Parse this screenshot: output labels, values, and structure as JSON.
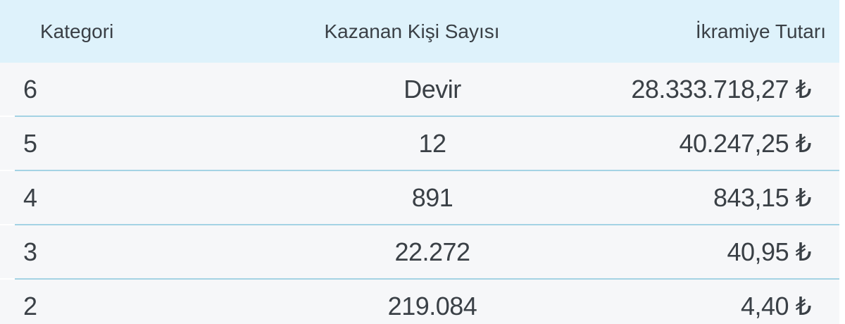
{
  "colors": {
    "header_bg": "#def2fb",
    "row_bg": "#f6f7f9",
    "divider": "#a4d3e4",
    "text": "#3a4046"
  },
  "table": {
    "headers": [
      "Kategori",
      "Kazanan Kişi Sayısı",
      "İkramiye Tutarı"
    ],
    "currency_symbol": "₺",
    "rows": [
      {
        "kategori": "6",
        "kazanan_kisi_sayisi": "Devir",
        "ikramiye_tutari": "28.333.718,27 ₺"
      },
      {
        "kategori": "5",
        "kazanan_kisi_sayisi": "12",
        "ikramiye_tutari": "40.247,25 ₺"
      },
      {
        "kategori": "4",
        "kazanan_kisi_sayisi": "891",
        "ikramiye_tutari": "843,15 ₺"
      },
      {
        "kategori": "3",
        "kazanan_kisi_sayisi": "22.272",
        "ikramiye_tutari": "40,95 ₺"
      },
      {
        "kategori": "2",
        "kazanan_kisi_sayisi": "219.084",
        "ikramiye_tutari": "4,40 ₺"
      }
    ]
  }
}
